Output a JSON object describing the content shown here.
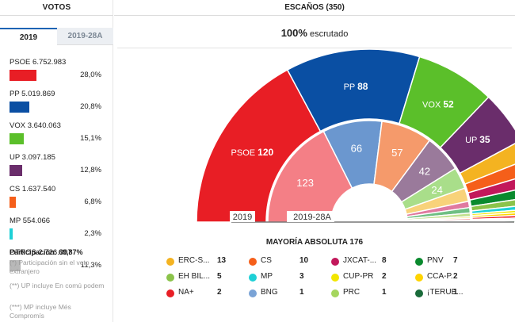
{
  "left": {
    "title": "VOTOS",
    "tabs": [
      "2019",
      "2019-28A"
    ],
    "votes": [
      {
        "party": "PSOE",
        "votes": "6.752.983",
        "pct": "28,0%",
        "value": 28.0,
        "color": "#e81e25"
      },
      {
        "party": "PP",
        "votes": "5.019.869",
        "pct": "20,8%",
        "value": 20.8,
        "color": "#0a4fa3"
      },
      {
        "party": "VOX",
        "votes": "3.640.063",
        "pct": "15,1%",
        "value": 15.1,
        "color": "#5bbf2a"
      },
      {
        "party": "UP",
        "votes": "3.097.185",
        "pct": "12,8%",
        "value": 12.8,
        "color": "#6a2d6b"
      },
      {
        "party": "CS",
        "votes": "1.637.540",
        "pct": "6,8%",
        "value": 6.8,
        "color": "#f55f1a"
      },
      {
        "party": "MP",
        "votes": "554.066",
        "pct": "2,3%",
        "value": 2.3,
        "color": "#1ed0d6"
      },
      {
        "party": "OTROS",
        "votes": "2.726.307",
        "pct": "11,3%",
        "value": 11.3,
        "color": "#b8b8b8"
      }
    ],
    "participation_label": "Participación:",
    "participation_value": "69,87%",
    "notes": [
      "(*) Participación sin el voto extranjero",
      "(**) UP incluye En comú podem",
      "(***) MP incluye Més Compromís"
    ]
  },
  "right": {
    "title": "ESCAÑOS (350)",
    "scrutiny_pct": "100%",
    "scrutiny_text": "escrutado",
    "majority": "MAYORÍA ABSOLUTA 176"
  },
  "chart_data": {
    "type": "pie",
    "total_seats": 350,
    "outer_label": "2019",
    "inner_label": "2019-28A",
    "outer": [
      {
        "party": "PSOE",
        "seats": 120,
        "color": "#e81e25",
        "label": "PSOE"
      },
      {
        "party": "PP",
        "seats": 88,
        "color": "#0a4fa3",
        "label": "PP"
      },
      {
        "party": "VOX",
        "seats": 52,
        "color": "#5bbf2a",
        "label": "VOX"
      },
      {
        "party": "UP",
        "seats": 35,
        "color": "#6a2d6b",
        "label": "UP"
      },
      {
        "party": "ERC-S",
        "seats": 13,
        "color": "#f4b321",
        "label": ""
      },
      {
        "party": "CS",
        "seats": 10,
        "color": "#f55f1a",
        "label": ""
      },
      {
        "party": "JXCAT",
        "seats": 8,
        "color": "#c2185b",
        "label": ""
      },
      {
        "party": "PNV",
        "seats": 7,
        "color": "#0a8a2e",
        "label": ""
      },
      {
        "party": "EH BIL",
        "seats": 5,
        "color": "#8bc34a",
        "label": ""
      },
      {
        "party": "MP",
        "seats": 3,
        "color": "#1ed0d6",
        "label": ""
      },
      {
        "party": "CUP-PR",
        "seats": 2,
        "color": "#f2e600",
        "label": ""
      },
      {
        "party": "CCA-P",
        "seats": 2,
        "color": "#ffd400",
        "label": ""
      },
      {
        "party": "NA+",
        "seats": 2,
        "color": "#e81e25",
        "label": ""
      },
      {
        "party": "BNG",
        "seats": 1,
        "color": "#7aa3d6",
        "label": ""
      },
      {
        "party": "PRC",
        "seats": 1,
        "color": "#a5d65e",
        "label": ""
      },
      {
        "party": "TERUEL",
        "seats": 1,
        "color": "#1a6b3a",
        "label": ""
      }
    ],
    "inner": [
      {
        "party": "PSOE",
        "seats": 123,
        "color": "#f47f86",
        "label": "123"
      },
      {
        "party": "PP",
        "seats": 66,
        "color": "#6b97cf",
        "label": "66"
      },
      {
        "party": "CS",
        "seats": 57,
        "color": "#f59a6b",
        "label": "57"
      },
      {
        "party": "UP",
        "seats": 42,
        "color": "#9a7a9b",
        "label": "42"
      },
      {
        "party": "VOX",
        "seats": 24,
        "color": "#a9de8a",
        "label": "24"
      },
      {
        "party": "ERC-S",
        "seats": 15,
        "color": "#f8d27a",
        "label": ""
      },
      {
        "party": "JXCAT",
        "seats": 7,
        "color": "#e07aa0",
        "label": ""
      },
      {
        "party": "PNV",
        "seats": 6,
        "color": "#6fbf83",
        "label": ""
      },
      {
        "party": "EH BIL",
        "seats": 4,
        "color": "#c2e08e",
        "label": ""
      },
      {
        "party": "CCA-P",
        "seats": 2,
        "color": "#ffe47a",
        "label": ""
      },
      {
        "party": "NA+",
        "seats": 2,
        "color": "#f59598",
        "label": ""
      },
      {
        "party": "PRC",
        "seats": 1,
        "color": "#d1ea9e",
        "label": ""
      },
      {
        "party": "MP",
        "seats": 1,
        "color": "#8ee4e7",
        "label": ""
      }
    ],
    "legend": [
      {
        "name": "ERC-S...",
        "seats": "13",
        "color": "#f4b321"
      },
      {
        "name": "CS",
        "seats": "10",
        "color": "#f55f1a"
      },
      {
        "name": "JXCAT-...",
        "seats": "8",
        "color": "#c2185b"
      },
      {
        "name": "PNV",
        "seats": "7",
        "color": "#0a8a2e"
      },
      {
        "name": "EH BIL...",
        "seats": "5",
        "color": "#8bc34a"
      },
      {
        "name": "MP",
        "seats": "3",
        "color": "#1ed0d6"
      },
      {
        "name": "CUP-PR",
        "seats": "2",
        "color": "#f2e600"
      },
      {
        "name": "CCA-P...",
        "seats": "2",
        "color": "#ffd400"
      },
      {
        "name": "NA+",
        "seats": "2",
        "color": "#e81e25"
      },
      {
        "name": "BNG",
        "seats": "1",
        "color": "#7aa3d6"
      },
      {
        "name": "PRC",
        "seats": "1",
        "color": "#a5d65e"
      },
      {
        "name": "¡TERUE...",
        "seats": "1",
        "color": "#1a6b3a"
      }
    ]
  }
}
